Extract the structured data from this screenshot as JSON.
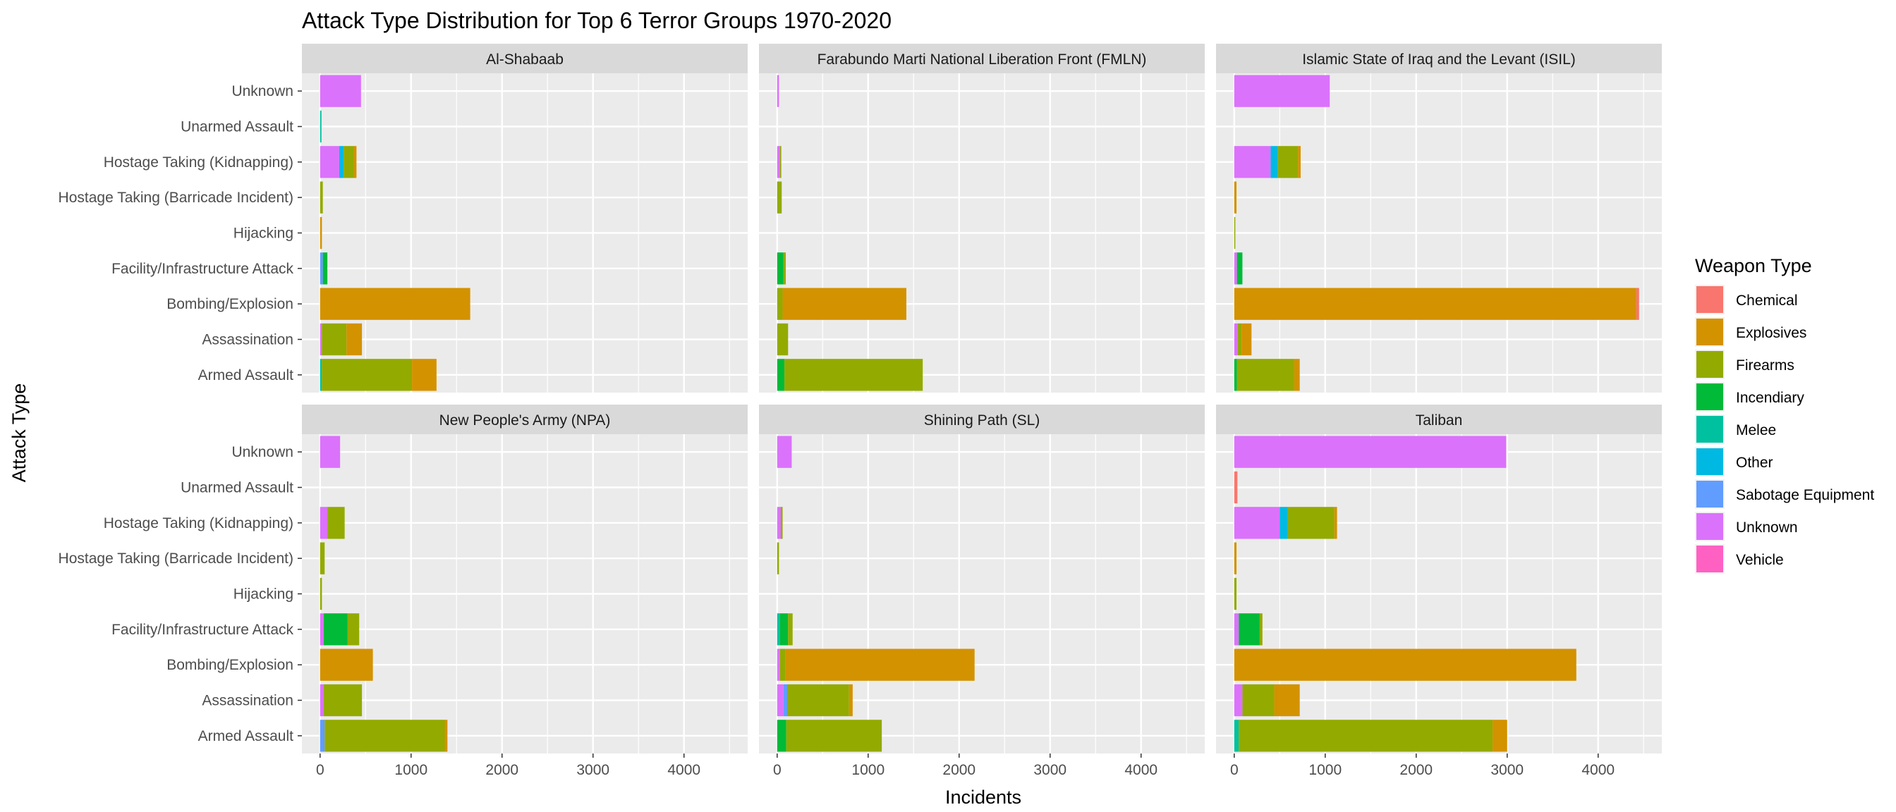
{
  "chart_data": {
    "type": "bar",
    "orientation": "horizontal",
    "stacked": true,
    "title": "Attack Type Distribution for Top 6 Terror Groups 1970-2020",
    "xlabel": "Incidents",
    "ylabel": "Attack Type",
    "xlim": [
      -200,
      4700
    ],
    "xticks": [
      0,
      1000,
      2000,
      3000,
      4000
    ],
    "xtick_labels": [
      "0",
      "1000",
      "2000",
      "3000",
      "4000"
    ],
    "grid": true,
    "legend_position": "right",
    "categories": [
      "Armed Assault",
      "Assassination",
      "Bombing/Explosion",
      "Facility/Infrastructure Attack",
      "Hijacking",
      "Hostage Taking (Barricade Incident)",
      "Hostage Taking (Kidnapping)",
      "Unarmed Assault",
      "Unknown"
    ],
    "legend": {
      "title": "Weapon Type",
      "items": [
        {
          "name": "Chemical",
          "color": "#F8766D"
        },
        {
          "name": "Explosives",
          "color": "#D39200"
        },
        {
          "name": "Firearms",
          "color": "#93AA00"
        },
        {
          "name": "Incendiary",
          "color": "#00BA38"
        },
        {
          "name": "Melee",
          "color": "#00C19F"
        },
        {
          "name": "Other",
          "color": "#00B9E3"
        },
        {
          "name": "Sabotage Equipment",
          "color": "#619CFF"
        },
        {
          "name": "Unknown",
          "color": "#DB72FB"
        },
        {
          "name": "Vehicle",
          "color": "#FF61C3"
        }
      ]
    },
    "panels": [
      {
        "title": "Al-Shabaab",
        "bars": [
          {
            "category": "Armed Assault",
            "segments": [
              {
                "weapon": "Melee",
                "value": 20
              },
              {
                "weapon": "Firearms",
                "value": 990
              },
              {
                "weapon": "Explosives",
                "value": 270
              }
            ]
          },
          {
            "category": "Assassination",
            "segments": [
              {
                "weapon": "Unknown",
                "value": 20
              },
              {
                "weapon": "Firearms",
                "value": 270
              },
              {
                "weapon": "Explosives",
                "value": 170
              }
            ]
          },
          {
            "category": "Bombing/Explosion",
            "segments": [
              {
                "weapon": "Explosives",
                "value": 1650
              }
            ]
          },
          {
            "category": "Facility/Infrastructure Attack",
            "segments": [
              {
                "weapon": "Sabotage Equipment",
                "value": 30
              },
              {
                "weapon": "Incendiary",
                "value": 50
              }
            ]
          },
          {
            "category": "Hijacking",
            "segments": [
              {
                "weapon": "Explosives",
                "value": 20
              }
            ]
          },
          {
            "category": "Hostage Taking (Barricade Incident)",
            "segments": [
              {
                "weapon": "Firearms",
                "value": 30
              }
            ]
          },
          {
            "category": "Hostage Taking (Kidnapping)",
            "segments": [
              {
                "weapon": "Unknown",
                "value": 210
              },
              {
                "weapon": "Other",
                "value": 50
              },
              {
                "weapon": "Firearms",
                "value": 110
              },
              {
                "weapon": "Explosives",
                "value": 30
              }
            ]
          },
          {
            "category": "Unarmed Assault",
            "segments": [
              {
                "weapon": "Melee",
                "value": 15
              }
            ]
          },
          {
            "category": "Unknown",
            "segments": [
              {
                "weapon": "Unknown",
                "value": 450
              }
            ]
          }
        ]
      },
      {
        "title": "Farabundo Marti National Liberation Front (FMLN)",
        "bars": [
          {
            "category": "Armed Assault",
            "segments": [
              {
                "weapon": "Incendiary",
                "value": 80
              },
              {
                "weapon": "Firearms",
                "value": 1520
              }
            ]
          },
          {
            "category": "Assassination",
            "segments": [
              {
                "weapon": "Firearms",
                "value": 120
              }
            ]
          },
          {
            "category": "Bombing/Explosion",
            "segments": [
              {
                "weapon": "Firearms",
                "value": 60
              },
              {
                "weapon": "Explosives",
                "value": 1360
              }
            ]
          },
          {
            "category": "Facility/Infrastructure Attack",
            "segments": [
              {
                "weapon": "Incendiary",
                "value": 70
              },
              {
                "weapon": "Firearms",
                "value": 25
              }
            ]
          },
          {
            "category": "Hijacking",
            "segments": []
          },
          {
            "category": "Hostage Taking (Barricade Incident)",
            "segments": [
              {
                "weapon": "Firearms",
                "value": 50
              }
            ]
          },
          {
            "category": "Hostage Taking (Kidnapping)",
            "segments": [
              {
                "weapon": "Unknown",
                "value": 30
              },
              {
                "weapon": "Firearms",
                "value": 15
              }
            ]
          },
          {
            "category": "Unarmed Assault",
            "segments": []
          },
          {
            "category": "Unknown",
            "segments": [
              {
                "weapon": "Unknown",
                "value": 20
              }
            ]
          }
        ]
      },
      {
        "title": "Islamic State of Iraq and the Levant (ISIL)",
        "bars": [
          {
            "category": "Armed Assault",
            "segments": [
              {
                "weapon": "Incendiary",
                "value": 30
              },
              {
                "weapon": "Firearms",
                "value": 630
              },
              {
                "weapon": "Explosives",
                "value": 60
              }
            ]
          },
          {
            "category": "Assassination",
            "segments": [
              {
                "weapon": "Unknown",
                "value": 40
              },
              {
                "weapon": "Firearms",
                "value": 40
              },
              {
                "weapon": "Explosives",
                "value": 110
              }
            ]
          },
          {
            "category": "Bombing/Explosion",
            "segments": [
              {
                "weapon": "Explosives",
                "value": 4420
              },
              {
                "weapon": "Chemical",
                "value": 30
              }
            ]
          },
          {
            "category": "Facility/Infrastructure Attack",
            "segments": [
              {
                "weapon": "Unknown",
                "value": 30
              },
              {
                "weapon": "Incendiary",
                "value": 60
              }
            ]
          },
          {
            "category": "Hijacking",
            "segments": [
              {
                "weapon": "Firearms",
                "value": 10
              }
            ]
          },
          {
            "category": "Hostage Taking (Barricade Incident)",
            "segments": [
              {
                "weapon": "Explosives",
                "value": 25
              }
            ]
          },
          {
            "category": "Hostage Taking (Kidnapping)",
            "segments": [
              {
                "weapon": "Unknown",
                "value": 400
              },
              {
                "weapon": "Other",
                "value": 80
              },
              {
                "weapon": "Firearms",
                "value": 220
              },
              {
                "weapon": "Explosives",
                "value": 30
              }
            ]
          },
          {
            "category": "Unarmed Assault",
            "segments": []
          },
          {
            "category": "Unknown",
            "segments": [
              {
                "weapon": "Unknown",
                "value": 1050
              }
            ]
          }
        ]
      },
      {
        "title": "New People's Army (NPA)",
        "bars": [
          {
            "category": "Armed Assault",
            "segments": [
              {
                "weapon": "Sabotage Equipment",
                "value": 50
              },
              {
                "weapon": "Firearms",
                "value": 1320
              },
              {
                "weapon": "Explosives",
                "value": 30
              }
            ]
          },
          {
            "category": "Assassination",
            "segments": [
              {
                "weapon": "Unknown",
                "value": 40
              },
              {
                "weapon": "Firearms",
                "value": 420
              }
            ]
          },
          {
            "category": "Bombing/Explosion",
            "segments": [
              {
                "weapon": "Explosives",
                "value": 580
              }
            ]
          },
          {
            "category": "Facility/Infrastructure Attack",
            "segments": [
              {
                "weapon": "Unknown",
                "value": 40
              },
              {
                "weapon": "Incendiary",
                "value": 260
              },
              {
                "weapon": "Firearms",
                "value": 130
              }
            ]
          },
          {
            "category": "Hijacking",
            "segments": [
              {
                "weapon": "Firearms",
                "value": 20
              }
            ]
          },
          {
            "category": "Hostage Taking (Barricade Incident)",
            "segments": [
              {
                "weapon": "Firearms",
                "value": 50
              }
            ]
          },
          {
            "category": "Hostage Taking (Kidnapping)",
            "segments": [
              {
                "weapon": "Unknown",
                "value": 80
              },
              {
                "weapon": "Firearms",
                "value": 190
              }
            ]
          },
          {
            "category": "Unarmed Assault",
            "segments": []
          },
          {
            "category": "Unknown",
            "segments": [
              {
                "weapon": "Unknown",
                "value": 220
              }
            ]
          }
        ]
      },
      {
        "title": "Shining Path (SL)",
        "bars": [
          {
            "category": "Armed Assault",
            "segments": [
              {
                "weapon": "Incendiary",
                "value": 100
              },
              {
                "weapon": "Firearms",
                "value": 1050
              }
            ]
          },
          {
            "category": "Assassination",
            "segments": [
              {
                "weapon": "Unknown",
                "value": 70
              },
              {
                "weapon": "Sabotage Equipment",
                "value": 40
              },
              {
                "weapon": "Firearms",
                "value": 680
              },
              {
                "weapon": "Explosives",
                "value": 40
              }
            ]
          },
          {
            "category": "Bombing/Explosion",
            "segments": [
              {
                "weapon": "Unknown",
                "value": 30
              },
              {
                "weapon": "Firearms",
                "value": 60
              },
              {
                "weapon": "Explosives",
                "value": 2080
              }
            ]
          },
          {
            "category": "Facility/Infrastructure Attack",
            "segments": [
              {
                "weapon": "Melee",
                "value": 30
              },
              {
                "weapon": "Incendiary",
                "value": 90
              },
              {
                "weapon": "Firearms",
                "value": 50
              }
            ]
          },
          {
            "category": "Hijacking",
            "segments": []
          },
          {
            "category": "Hostage Taking (Barricade Incident)",
            "segments": [
              {
                "weapon": "Firearms",
                "value": 20
              }
            ]
          },
          {
            "category": "Hostage Taking (Kidnapping)",
            "segments": [
              {
                "weapon": "Unknown",
                "value": 40
              },
              {
                "weapon": "Firearms",
                "value": 20
              }
            ]
          },
          {
            "category": "Unarmed Assault",
            "segments": []
          },
          {
            "category": "Unknown",
            "segments": [
              {
                "weapon": "Unknown",
                "value": 160
              }
            ]
          }
        ]
      },
      {
        "title": "Taliban",
        "bars": [
          {
            "category": "Armed Assault",
            "segments": [
              {
                "weapon": "Melee",
                "value": 50
              },
              {
                "weapon": "Firearms",
                "value": 2790
              },
              {
                "weapon": "Explosives",
                "value": 160
              }
            ]
          },
          {
            "category": "Assassination",
            "segments": [
              {
                "weapon": "Unknown",
                "value": 90
              },
              {
                "weapon": "Firearms",
                "value": 350
              },
              {
                "weapon": "Explosives",
                "value": 280
              }
            ]
          },
          {
            "category": "Bombing/Explosion",
            "segments": [
              {
                "weapon": "Explosives",
                "value": 3760
              }
            ]
          },
          {
            "category": "Facility/Infrastructure Attack",
            "segments": [
              {
                "weapon": "Unknown",
                "value": 50
              },
              {
                "weapon": "Incendiary",
                "value": 230
              },
              {
                "weapon": "Firearms",
                "value": 30
              }
            ]
          },
          {
            "category": "Hijacking",
            "segments": [
              {
                "weapon": "Firearms",
                "value": 25
              }
            ]
          },
          {
            "category": "Hostage Taking (Barricade Incident)",
            "segments": [
              {
                "weapon": "Explosives",
                "value": 25
              }
            ]
          },
          {
            "category": "Hostage Taking (Kidnapping)",
            "segments": [
              {
                "weapon": "Unknown",
                "value": 500
              },
              {
                "weapon": "Other",
                "value": 90
              },
              {
                "weapon": "Firearms",
                "value": 510
              },
              {
                "weapon": "Explosives",
                "value": 30
              }
            ]
          },
          {
            "category": "Unarmed Assault",
            "segments": [
              {
                "weapon": "Chemical",
                "value": 35
              }
            ]
          },
          {
            "category": "Unknown",
            "segments": [
              {
                "weapon": "Unknown",
                "value": 2990
              }
            ]
          }
        ]
      }
    ]
  }
}
